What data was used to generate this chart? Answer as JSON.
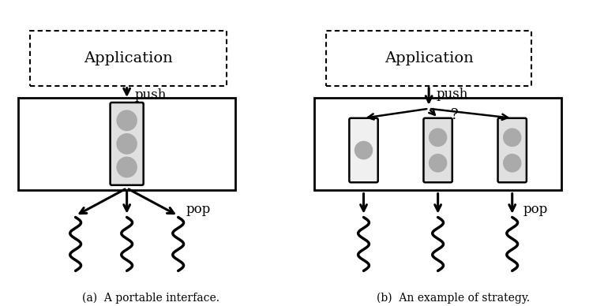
{
  "fig_width": 7.65,
  "fig_height": 3.88,
  "dpi": 100,
  "background_color": "#ffffff",
  "caption_a": "(a)  A portable interface.",
  "caption_b": "(b)  An example of strategy.",
  "app_label": "Application",
  "push_label": "push",
  "pop_label": "pop",
  "question_mark": "?",
  "gray_circle": "#aaaaaa",
  "queue_rect_fill": "#e0e0e0"
}
